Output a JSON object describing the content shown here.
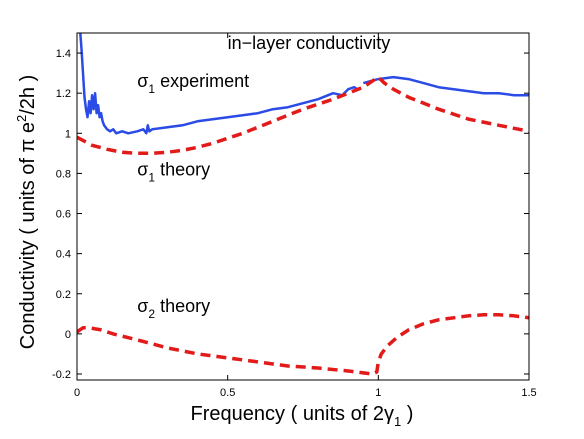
{
  "chart_data": {
    "type": "line",
    "title": "",
    "xlabel": "Frequency  ( units of 2γ₁ )",
    "ylabel": "Conductivity  ( units of  π e²/2h )",
    "xlim": [
      0,
      1.5
    ],
    "ylim": [
      -0.23,
      1.5
    ],
    "xticks": [
      0,
      0.5,
      1,
      1.5
    ],
    "xtick_labels": [
      "0",
      "0.5",
      "1",
      "1.5"
    ],
    "yticks": [
      -0.2,
      0,
      0.2,
      0.4,
      0.6,
      0.8,
      1,
      1.2,
      1.4
    ],
    "ytick_labels": [
      "-0.2",
      "0",
      "0.2",
      "0.4",
      "0.6",
      "0.8",
      "1",
      "1.2",
      "1.4"
    ],
    "grid": false,
    "colors": {
      "experiment": "#2b4be6",
      "theory": "#e31a1a"
    },
    "series": [
      {
        "style": "solid",
        "color": "#2b4be6",
        "x": [
          0.01,
          0.015,
          0.02,
          0.025,
          0.03,
          0.035,
          0.04,
          0.045,
          0.05,
          0.055,
          0.06,
          0.065,
          0.07,
          0.075,
          0.08,
          0.085,
          0.09,
          0.1,
          0.11,
          0.12,
          0.13,
          0.15,
          0.17,
          0.2,
          0.22,
          0.23,
          0.235,
          0.24,
          0.25,
          0.3,
          0.35,
          0.4,
          0.45,
          0.5,
          0.55,
          0.6,
          0.65,
          0.7,
          0.75,
          0.8,
          0.85,
          0.88,
          0.9,
          0.92,
          0.93
        ],
        "y": [
          1.52,
          1.42,
          1.3,
          1.18,
          1.12,
          1.08,
          1.16,
          1.1,
          1.19,
          1.12,
          1.2,
          1.1,
          1.14,
          1.08,
          1.1,
          1.06,
          1.04,
          1.02,
          1.01,
          1.02,
          1.0,
          1.01,
          1.0,
          1.01,
          1.02,
          1.0,
          1.04,
          1.01,
          1.02,
          1.03,
          1.04,
          1.06,
          1.07,
          1.08,
          1.09,
          1.1,
          1.12,
          1.13,
          1.15,
          1.17,
          1.2,
          1.19,
          1.22,
          1.23,
          1.22
        ]
      },
      {
        "style": "solid",
        "color": "#2b4be6",
        "x": [
          0.95,
          1.0,
          1.05,
          1.1,
          1.15,
          1.2,
          1.25,
          1.3,
          1.35,
          1.4,
          1.45,
          1.5
        ],
        "y": [
          1.25,
          1.27,
          1.28,
          1.27,
          1.25,
          1.23,
          1.22,
          1.21,
          1.2,
          1.2,
          1.19,
          1.19
        ]
      },
      {
        "style": "dashed",
        "color": "#e31a1a",
        "x": [
          0,
          0.05,
          0.1,
          0.15,
          0.2,
          0.25,
          0.3,
          0.35,
          0.4,
          0.45,
          0.5,
          0.55,
          0.6,
          0.65,
          0.7,
          0.75,
          0.8,
          0.85,
          0.9,
          0.95,
          0.98,
          1.0,
          1.02,
          1.05,
          1.1,
          1.2,
          1.3,
          1.4,
          1.5
        ],
        "y": [
          0.98,
          0.94,
          0.92,
          0.905,
          0.9,
          0.9,
          0.905,
          0.915,
          0.93,
          0.95,
          0.975,
          1.0,
          1.03,
          1.06,
          1.09,
          1.12,
          1.145,
          1.17,
          1.2,
          1.23,
          1.26,
          1.28,
          1.25,
          1.22,
          1.18,
          1.12,
          1.07,
          1.04,
          1.01
        ]
      },
      {
        "style": "dashed",
        "color": "#e31a1a",
        "x": [
          0,
          0.02,
          0.04,
          0.08,
          0.12,
          0.2,
          0.3,
          0.4,
          0.5,
          0.6,
          0.7,
          0.8,
          0.9,
          0.98,
          0.995,
          1.0,
          1.01,
          1.03,
          1.06,
          1.1,
          1.15,
          1.2,
          1.25,
          1.3,
          1.35,
          1.4,
          1.45,
          1.5
        ],
        "y": [
          0.01,
          0.03,
          0.03,
          0.02,
          0.0,
          -0.03,
          -0.07,
          -0.1,
          -0.12,
          -0.14,
          -0.16,
          -0.17,
          -0.185,
          -0.2,
          -0.19,
          -0.14,
          -0.1,
          -0.06,
          -0.02,
          0.02,
          0.05,
          0.07,
          0.08,
          0.09,
          0.095,
          0.095,
          0.09,
          0.08
        ]
      }
    ],
    "annotations": [
      {
        "text": "in−layer conductivity",
        "x": 0.5,
        "y": 1.42
      },
      {
        "text": "σ₁  experiment",
        "x": 0.2,
        "y": 1.23
      },
      {
        "text": "σ₁  theory",
        "x": 0.2,
        "y": 0.79
      },
      {
        "text": "σ₂  theory",
        "x": 0.2,
        "y": 0.11
      }
    ]
  }
}
